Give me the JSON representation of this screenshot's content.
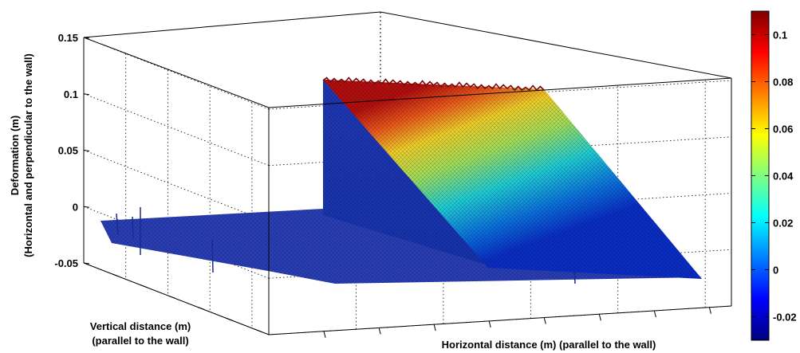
{
  "chart_data": {
    "type": "surface",
    "title": "",
    "zlabel": [
      "Deformation (m)",
      "(Horizontal and perpendicular to the wall)"
    ],
    "ylabel": [
      "Vertical distance (m)",
      "(parallel to the wall)"
    ],
    "xlabel": "Horizontal distance (m) (parallel to the wall)",
    "zlim": [
      -0.05,
      0.15
    ],
    "z_ticks": [
      "-0.05",
      "0",
      "0.05",
      "0.1",
      "0.15"
    ],
    "grid": "on",
    "surface": {
      "description": "flat plane near 0 on the left half; sharp step near the middle of the horizontal axis rising to about 0.11 at the back edge, then sloping down to about 0 toward the front edge",
      "base_level": 0,
      "peak_level": 0.11
    },
    "colorbar": {
      "ticks": [
        "0.1",
        "0.08",
        "0.06",
        "0.04",
        "0.02",
        "0",
        "-0.02"
      ],
      "range": [
        -0.03,
        0.11
      ],
      "colormap": "jet",
      "placement": "right"
    }
  }
}
